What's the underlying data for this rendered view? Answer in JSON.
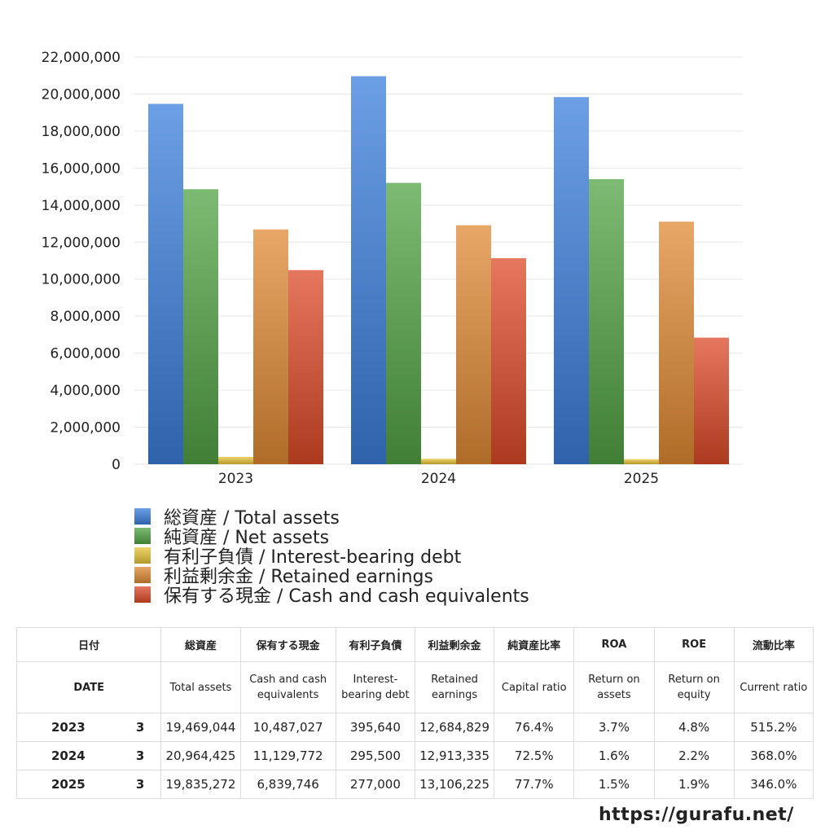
{
  "chart_data": {
    "type": "bar",
    "categories": [
      "2023",
      "2024",
      "2025"
    ],
    "ylim": [
      0,
      22000000
    ],
    "yticks": [
      "0",
      "2,000,000",
      "4,000,000",
      "6,000,000",
      "8,000,000",
      "10,000,000",
      "12,000,000",
      "14,000,000",
      "16,000,000",
      "18,000,000",
      "20,000,000",
      "22,000,000"
    ],
    "grid": true,
    "legend_position": "bottom",
    "series": [
      {
        "name": "総資産 / Total assets",
        "values": [
          19469044,
          20964425,
          19835272
        ],
        "color": "#3b7fdc"
      },
      {
        "name": "純資産 / Net assets",
        "values": [
          14860000,
          15200000,
          15400000
        ],
        "color": "#52a344"
      },
      {
        "name": "有利子負債 / Interest-bearing debt",
        "values": [
          395640,
          295500,
          277000
        ],
        "color": "#e8c43a"
      },
      {
        "name": "利益剰余金 / Retained earnings",
        "values": [
          12684829,
          12913335,
          13106225
        ],
        "color": "#e08a34"
      },
      {
        "name": "保有する現金 /  Cash and cash equivalents",
        "values": [
          10487027,
          11129772,
          6839746
        ],
        "color": "#dc4a28"
      }
    ]
  },
  "table": {
    "header_jp": [
      "日付",
      "総資産",
      "保有する現金",
      "有利子負債",
      "利益剰余金",
      "純資産比率",
      "ROA",
      "ROE",
      "流動比率"
    ],
    "header_en": [
      "DATE",
      "Total assets",
      "Cash and cash equivalents",
      "Interest-bearing debt",
      "Retained earnings",
      "Capital ratio",
      "Return on assets",
      "Return on equity",
      "Current ratio"
    ],
    "rows": [
      {
        "year": "2023",
        "month": "3",
        "total_assets": "19,469,044",
        "cash": "10,487,027",
        "debt": "395,640",
        "retained": "12,684,829",
        "capital_ratio": "76.4%",
        "roa": "3.7%",
        "roe": "4.8%",
        "current_ratio": "515.2%"
      },
      {
        "year": "2024",
        "month": "3",
        "total_assets": "20,964,425",
        "cash": "11,129,772",
        "debt": "295,500",
        "retained": "12,913,335",
        "capital_ratio": "72.5%",
        "roa": "1.6%",
        "roe": "2.2%",
        "current_ratio": "368.0%"
      },
      {
        "year": "2025",
        "month": "3",
        "total_assets": "19,835,272",
        "cash": "6,839,746",
        "debt": "277,000",
        "retained": "13,106,225",
        "capital_ratio": "77.7%",
        "roa": "1.5%",
        "roe": "1.9%",
        "current_ratio": "346.0%"
      }
    ]
  },
  "footer": {
    "url": "https://gurafu.net/"
  }
}
